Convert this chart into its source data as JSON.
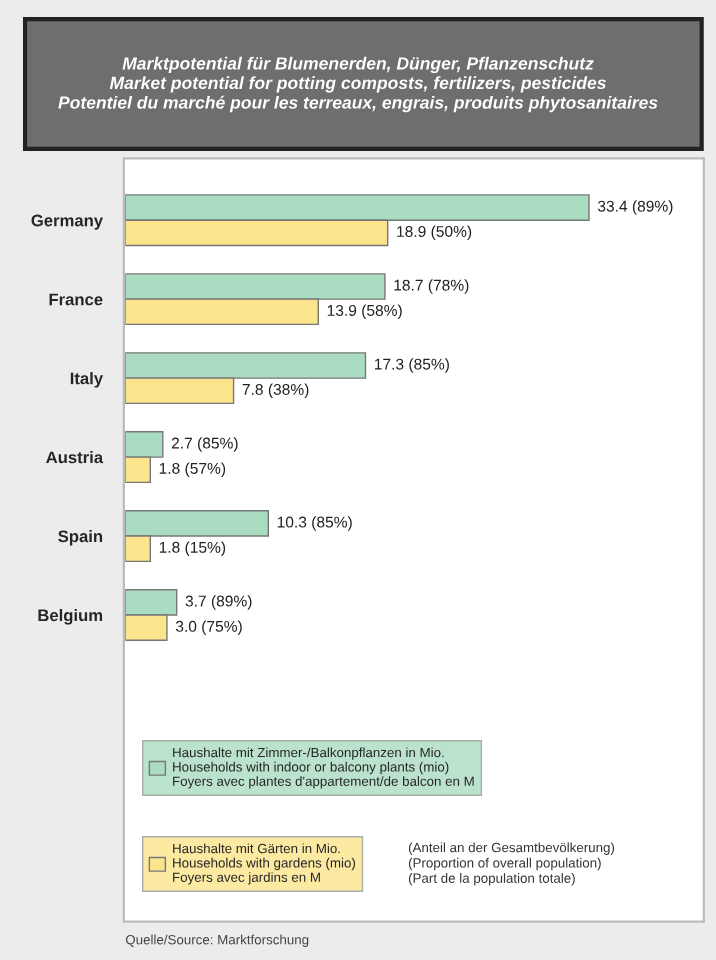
{
  "chart_data": {
    "type": "bar",
    "orientation": "horizontal",
    "title": "Marktpotential für Blumenerden, Dünger, Pflanzenschutz\nMarket potential for potting composts, fertilizers, pesticides\nPotentiel du marché pour les terreaux, engrais, produits phytosanitaires",
    "categories": [
      "Germany",
      "France",
      "Italy",
      "Austria",
      "Spain",
      "Belgium"
    ],
    "series": [
      {
        "name": "Haushalte mit Zimmer-/Balkonpflanzen in Mio.\nHouseholds with indoor or balcony plants (mio)\nFoyers avec plantes d'appartement/de balcon en M",
        "color": "#a9dcc0",
        "values": [
          33.4,
          18.7,
          17.3,
          2.7,
          10.3,
          3.7
        ],
        "value_labels": [
          "33.4 (89%)",
          "18.7 (78%)",
          "17.3 (85%)",
          "2.7 (85%)",
          "10.3 (85%)",
          "3.7 (89%)"
        ]
      },
      {
        "name": "Haushalte mit Gärten in Mio.\nHouseholds with gardens (mio)\nFoyers avec jardins en M",
        "color": "#fce48c",
        "values": [
          18.9,
          13.9,
          7.8,
          1.8,
          1.8,
          3.0
        ],
        "value_labels": [
          "18.9 (50%)",
          "13.9 (58%)",
          "7.8 (38%)",
          "1.8 (57%)",
          "1.8 (15%)",
          "3.0 (75%)"
        ]
      }
    ],
    "annotations": [
      "(Anteil an der Gesamtbevölkerung)\n(Proportion of overall population)\n(Part de la population totale)",
      "Quelle/Source: Marktforschung"
    ],
    "legend": "bottom",
    "grid": false
  }
}
